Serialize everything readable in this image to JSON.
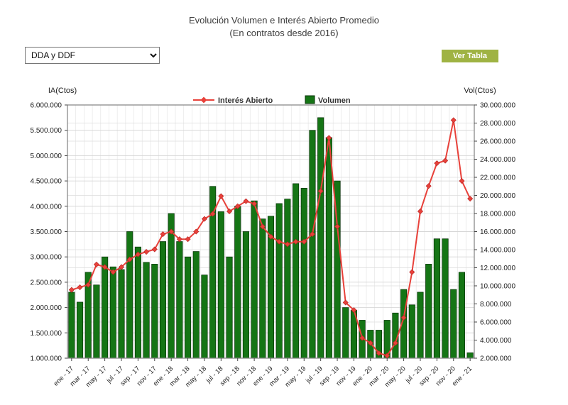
{
  "page": {
    "title_line1": "Evolución Volumen e Interés Abierto Promedio",
    "title_line2": "(En contratos desde 2016)"
  },
  "controls": {
    "dropdown": {
      "selected": "DDA y DDF"
    },
    "table_button": {
      "label": "Ver Tabla",
      "color": "#9fb343"
    }
  },
  "chart_data": {
    "type": "bar",
    "subtype": "combo bar+line, dual axis",
    "title": "Evolución Volumen e Interés Abierto Promedio",
    "subtitle": "(En contratos desde 2016)",
    "legend_position": "top-center",
    "grid": true,
    "label_every": 2,
    "x": [
      "ene - 17",
      "feb - 17",
      "mar - 17",
      "abr - 17",
      "may - 17",
      "jun - 17",
      "jul - 17",
      "ago - 17",
      "sep - 17",
      "oct - 17",
      "nov - 17",
      "dic - 17",
      "ene - 18",
      "feb - 18",
      "mar - 18",
      "abr - 18",
      "may - 18",
      "jun - 18",
      "jul - 18",
      "ago - 18",
      "sep - 18",
      "oct - 18",
      "nov - 18",
      "dic - 18",
      "ene - 19",
      "feb - 19",
      "mar - 19",
      "abr - 19",
      "may - 19",
      "jun - 19",
      "jul - 19",
      "ago - 19",
      "sep - 19",
      "oct - 19",
      "nov - 19",
      "dic - 19",
      "ene - 20",
      "feb - 20",
      "mar - 20",
      "abr - 20",
      "may - 20",
      "jun - 20",
      "jul - 20",
      "ago - 20",
      "sep - 20",
      "oct - 20",
      "nov - 20",
      "dic - 20",
      "ene - 21"
    ],
    "series": [
      {
        "name": "Interés Abierto",
        "type": "line",
        "axis": "left",
        "color": "#e8413a",
        "values": [
          2350000,
          2400000,
          2450000,
          2850000,
          2800000,
          2700000,
          2800000,
          2950000,
          3050000,
          3100000,
          3150000,
          3450000,
          3500000,
          3350000,
          3350000,
          3500000,
          3750000,
          3850000,
          4200000,
          3900000,
          4000000,
          4100000,
          4050000,
          3600000,
          3400000,
          3300000,
          3250000,
          3300000,
          3300000,
          3450000,
          4300000,
          5350000,
          3600000,
          2100000,
          1950000,
          1400000,
          1300000,
          1100000,
          1050000,
          1300000,
          1800000,
          2700000,
          3900000,
          4400000,
          4850000,
          4900000,
          5700000,
          4500000,
          4150000
        ]
      },
      {
        "name": "Volumen",
        "type": "bar",
        "axis": "right",
        "color": "#157515",
        "values": [
          9300000,
          8200000,
          11500000,
          10100000,
          13200000,
          12100000,
          11800000,
          16000000,
          14300000,
          12600000,
          12400000,
          14900000,
          18000000,
          14900000,
          13200000,
          13800000,
          11200000,
          21000000,
          18200000,
          13200000,
          18800000,
          16000000,
          19400000,
          17400000,
          17700000,
          19100000,
          19600000,
          21300000,
          20800000,
          27200000,
          28600000,
          26400000,
          21600000,
          7600000,
          7300000,
          6200000,
          5100000,
          5100000,
          6200000,
          7000000,
          9600000,
          7900000,
          9300000,
          12400000,
          15200000,
          15200000,
          9600000,
          11500000,
          2600000
        ]
      }
    ],
    "left_axis": {
      "title": "IA(Ctos)",
      "min": 1000000,
      "max": 6000000,
      "step": 500000
    },
    "right_axis": {
      "title": "Vol(Ctos)",
      "min": 2000000,
      "max": 30000000,
      "step": 2000000
    }
  }
}
